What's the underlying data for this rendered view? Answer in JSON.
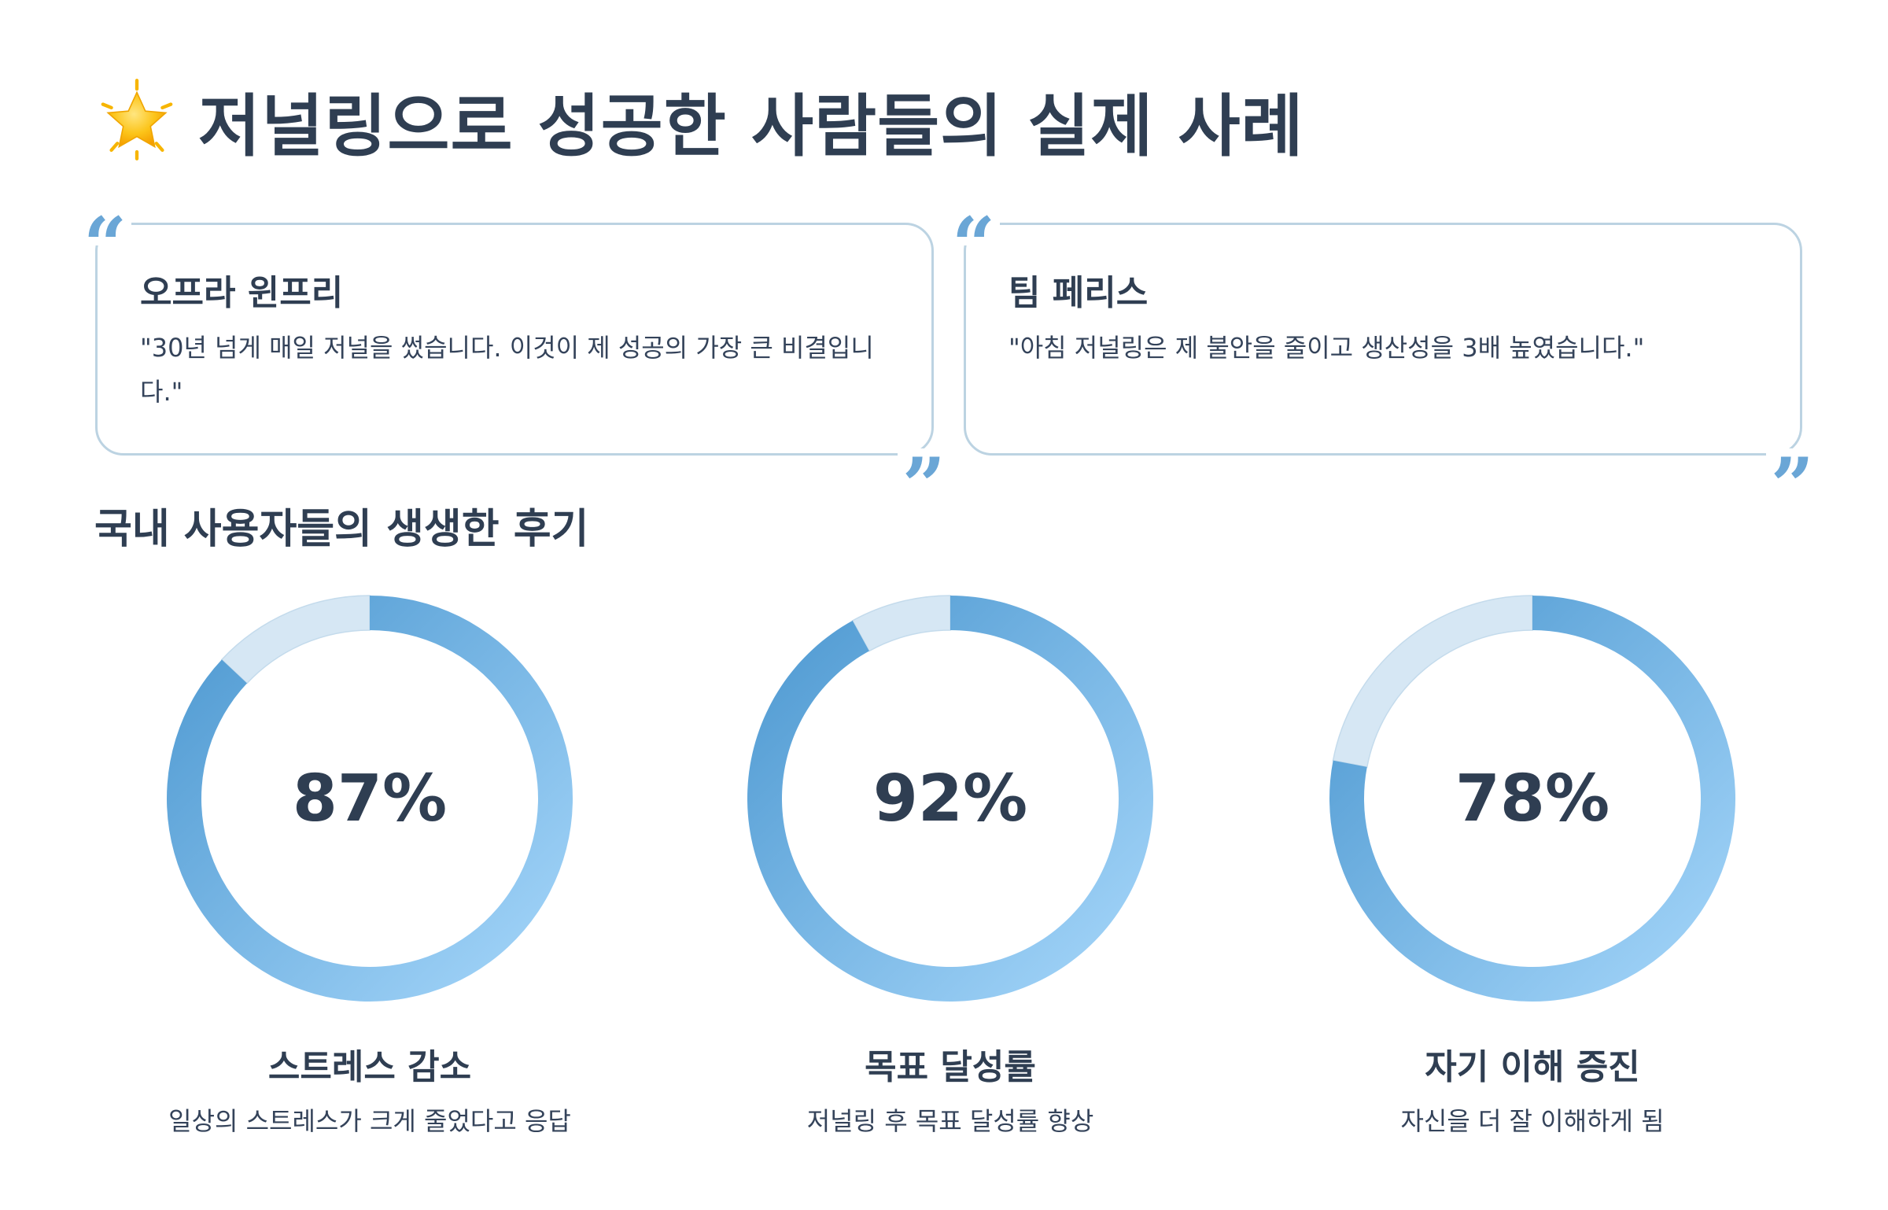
{
  "page": {
    "title_icon": "star-icon",
    "title": "저널링으로 성공한 사람들의 실제 사례"
  },
  "quotes": [
    {
      "name": "오프라 윈프리",
      "text": "\"30년 넘게 매일 저널을 썼습니다. 이것이 제 성공의 가장 큰 비결입니다.\""
    },
    {
      "name": "팀 페리스",
      "text": "\"아침 저널링은 제 불안을 줄이고 생산성을 3배 높였습니다.\""
    }
  ],
  "section": {
    "title": "국내 사용자들의 생생한 후기"
  },
  "stats": [
    {
      "value": 87,
      "display": "87%",
      "label": "스트레스 감소",
      "desc": "일상의 스트레스가 크게 줄었다고 응답"
    },
    {
      "value": 92,
      "display": "92%",
      "label": "목표 달성률",
      "desc": "저널링 후 목표 달성률 향상"
    },
    {
      "value": 78,
      "display": "78%",
      "label": "자기 이해 증진",
      "desc": "자신을 더 잘 이해하게 됨"
    }
  ],
  "colors": {
    "ring_start": "#4a96cf",
    "ring_end": "#a8d8fb",
    "ring_track": "#d6e7f4",
    "heading": "#2f3e52",
    "quote_mark": "#6aa6d6",
    "card_border": "#bcd3e2"
  }
}
